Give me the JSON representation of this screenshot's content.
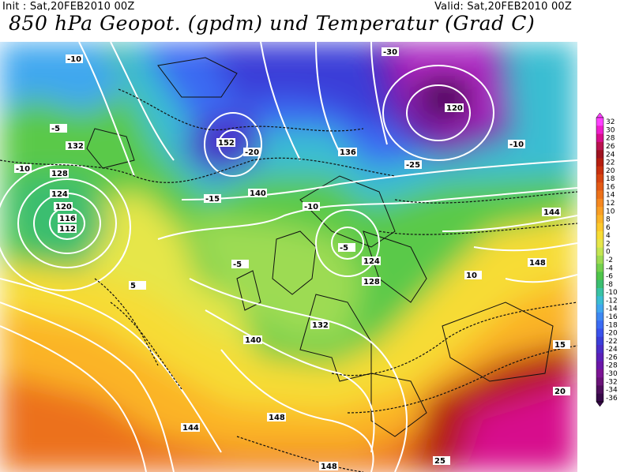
{
  "header": {
    "init": "Init : Sat,20FEB2010 00Z",
    "valid": "Valid: Sat,20FEB2010 00Z",
    "title": "850 hPa Geopot. (gpdm) und Temperatur (Grad C)"
  },
  "geopotential_labels": [
    "116",
    "112",
    "120",
    "124",
    "128",
    "132",
    "136",
    "140",
    "144",
    "148",
    "152"
  ],
  "temperature_labels": [
    "-30",
    "-25",
    "-20",
    "-15",
    "-10",
    "-5",
    "5",
    "10",
    "15",
    "20",
    "25"
  ],
  "legend": {
    "ticks": [
      "32",
      "30",
      "28",
      "26",
      "24",
      "22",
      "20",
      "18",
      "16",
      "14",
      "12",
      "10",
      "8",
      "6",
      "4",
      "2",
      "0",
      "-2",
      "-4",
      "-6",
      "-8",
      "-10",
      "-12",
      "-14",
      "-16",
      "-18",
      "-20",
      "-22",
      "-24",
      "-26",
      "-28",
      "-30",
      "-32",
      "-34",
      "-36"
    ],
    "colors": [
      "#ff40ff",
      "#ee1ecc",
      "#d70e8c",
      "#b8124f",
      "#9d121f",
      "#b51e10",
      "#c8300f",
      "#d74511",
      "#e35a15",
      "#ec711a",
      "#f58820",
      "#f99e24",
      "#fbb428",
      "#fcc92c",
      "#f7dc34",
      "#e6e64a",
      "#c4e552",
      "#9ddb52",
      "#73d04d",
      "#4fc54a",
      "#3bbe70",
      "#39c2a4",
      "#3bbdd2",
      "#40a7ef",
      "#3e88f2",
      "#3b6bf3",
      "#3a52ec",
      "#3b3ed8",
      "#4a2ec8",
      "#5a20b8",
      "#6a16a8",
      "#7c1494",
      "#6a1278",
      "#4e0e5c",
      "#360848"
    ]
  }
}
